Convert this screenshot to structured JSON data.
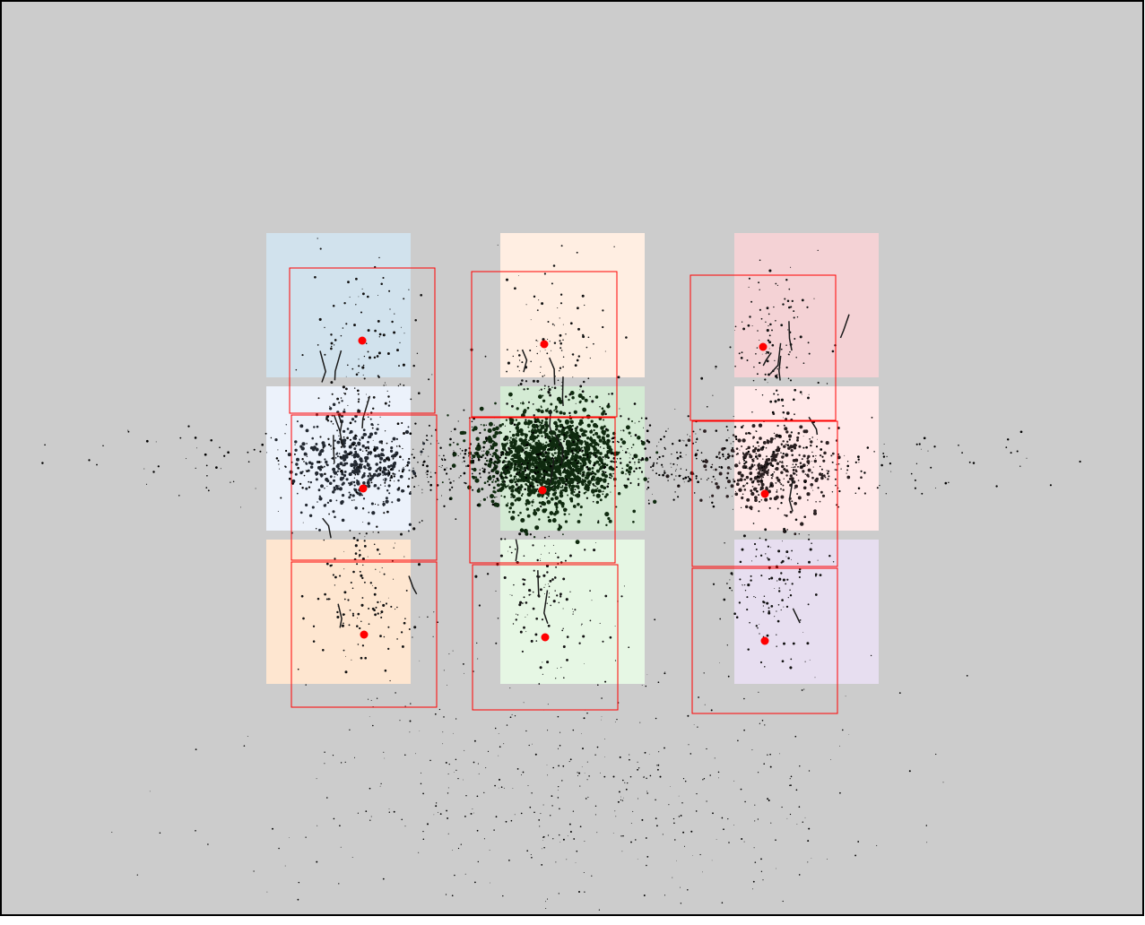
{
  "canvas": {
    "background": "#cccccc",
    "border": "#000000"
  },
  "tiles": [
    {
      "id": "top-left",
      "color": "#d1e2ed"
    },
    {
      "id": "top-center",
      "color": "#ffeee2"
    },
    {
      "id": "top-right",
      "color": "#f4d2d5"
    },
    {
      "id": "middle-left",
      "color": "#ecf2fb"
    },
    {
      "id": "middle-center",
      "color": "#d4ebd4"
    },
    {
      "id": "middle-right",
      "color": "#ffe8e8"
    },
    {
      "id": "bottom-left",
      "color": "#fee6d0"
    },
    {
      "id": "bottom-center",
      "color": "#e6f7e4"
    },
    {
      "id": "bottom-right",
      "color": "#e7def0"
    }
  ],
  "marker_color": "#ff0000",
  "point_color": "#000000",
  "cluster_color_center": "#0f2a0f"
}
